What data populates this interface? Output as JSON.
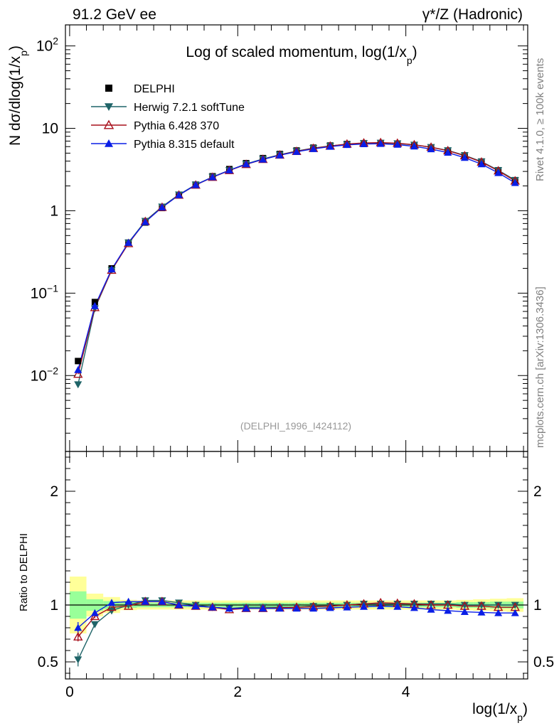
{
  "header": {
    "left": "91.2 GeV ee",
    "right": "γ*/Z (Hadronic)"
  },
  "side_labels": {
    "rivet": "Rivet 4.1.0, ≥ 100k events",
    "mcplots": "mcplots.cern.ch [arXiv:1306.3436]"
  },
  "colors": {
    "data": "#000000",
    "herwig": "#1f6468",
    "pythia6": "#a8101c",
    "pythia8": "#0a1ee6",
    "band_outer": "#ffff99",
    "band_inner": "#99ff99"
  },
  "chart_data": [
    {
      "type": "line",
      "title": "Log of scaled momentum, log(1/x_p)",
      "title_main": "Log of scaled momentum, log(1/x",
      "title_sub": "p",
      "title_close": ")",
      "ylabel": "N  dσ/dlog(1/x_p)",
      "ylabel_main": "N  dσ/dlog(1/x",
      "ylabel_sub": "p",
      "ylabel_close": ")",
      "yscale": "log",
      "ylim": [
        0.0012,
        180
      ],
      "xlim": [
        -0.05,
        5.45
      ],
      "yticks": [
        0.01,
        0.1,
        1,
        10,
        100
      ],
      "ytick_labels": [
        {
          "base": "10",
          "exp": "−2"
        },
        {
          "base": "10",
          "exp": "−1"
        },
        {
          "base": "1",
          "exp": ""
        },
        {
          "base": "10",
          "exp": ""
        },
        {
          "base": "10",
          "exp": "2"
        }
      ],
      "analysis_tag": "(DELPHI_1996_I424112)",
      "legend_position": "top-left",
      "x": [
        0.1,
        0.3,
        0.5,
        0.7,
        0.9,
        1.1,
        1.3,
        1.5,
        1.7,
        1.9,
        2.1,
        2.3,
        2.5,
        2.7,
        2.9,
        3.1,
        3.3,
        3.5,
        3.7,
        3.9,
        4.1,
        4.3,
        4.5,
        4.7,
        4.9,
        5.1,
        5.3
      ],
      "series": [
        {
          "name": "DELPHI",
          "marker": "square",
          "values": [
            0.015,
            0.078,
            0.2,
            0.41,
            0.72,
            1.08,
            1.55,
            2.07,
            2.62,
            3.2,
            3.78,
            4.35,
            4.88,
            5.38,
            5.82,
            6.18,
            6.45,
            6.6,
            6.62,
            6.5,
            6.25,
            5.85,
            5.35,
            4.7,
            3.95,
            3.1,
            2.35
          ]
        },
        {
          "name": "Herwig 7.2.1 softTune",
          "marker": "triangle-down",
          "values": [
            0.0078,
            0.065,
            0.19,
            0.41,
            0.75,
            1.12,
            1.57,
            2.07,
            2.57,
            3.1,
            3.7,
            4.25,
            4.78,
            5.3,
            5.75,
            6.12,
            6.4,
            6.6,
            6.65,
            6.55,
            6.3,
            5.9,
            5.4,
            4.7,
            3.95,
            3.1,
            2.35
          ]
        },
        {
          "name": "Pythia 6.428 370",
          "marker": "triangle-up-open",
          "values": [
            0.0104,
            0.067,
            0.19,
            0.4,
            0.74,
            1.1,
            1.55,
            2.05,
            2.55,
            3.08,
            3.65,
            4.2,
            4.75,
            5.25,
            5.72,
            6.1,
            6.45,
            6.65,
            6.72,
            6.6,
            6.32,
            5.9,
            5.35,
            4.65,
            3.9,
            3.05,
            2.3
          ]
        },
        {
          "name": "Pythia 8.315 default",
          "marker": "triangle-up",
          "values": [
            0.0117,
            0.07,
            0.195,
            0.41,
            0.73,
            1.1,
            1.55,
            2.06,
            2.56,
            3.1,
            3.68,
            4.2,
            4.72,
            5.2,
            5.63,
            6.0,
            6.3,
            6.45,
            6.5,
            6.35,
            6.05,
            5.6,
            5.08,
            4.4,
            3.68,
            2.88,
            2.18
          ]
        }
      ]
    },
    {
      "type": "line",
      "xlabel": "log(1/x_p)",
      "xlabel_main": "log(1/x",
      "xlabel_sub": "p",
      "xlabel_close": ")",
      "ylabel": "Ratio to DELPHI",
      "ylim": [
        0.35,
        2.35
      ],
      "xlim": [
        -0.05,
        5.45
      ],
      "xticks": [
        0,
        2,
        4
      ],
      "xtick_labels": [
        "0",
        "2",
        "4"
      ],
      "yticks": [
        0.5,
        1,
        2
      ],
      "ytick_labels": [
        "0.5",
        "1",
        "2"
      ],
      "reference": 1,
      "band_edges": [
        0,
        0.2,
        0.4,
        0.6,
        0.8,
        1.0,
        1.2,
        1.4,
        1.6,
        1.8,
        2.0,
        2.2,
        2.4,
        2.6,
        2.8,
        3.0,
        3.2,
        3.4,
        3.6,
        3.8,
        4.0,
        4.2,
        4.4,
        4.6,
        4.8,
        5.0,
        5.2,
        5.4
      ],
      "band_outer_halfwidth": [
        0.25,
        0.1,
        0.07,
        0.045,
        0.04,
        0.04,
        0.04,
        0.04,
        0.04,
        0.04,
        0.04,
        0.04,
        0.04,
        0.04,
        0.04,
        0.04,
        0.04,
        0.04,
        0.04,
        0.04,
        0.04,
        0.04,
        0.04,
        0.045,
        0.05,
        0.055,
        0.06
      ],
      "band_inner_halfwidth": [
        0.12,
        0.05,
        0.035,
        0.025,
        0.02,
        0.02,
        0.02,
        0.02,
        0.02,
        0.02,
        0.02,
        0.02,
        0.02,
        0.02,
        0.02,
        0.02,
        0.02,
        0.02,
        0.02,
        0.02,
        0.02,
        0.02,
        0.02,
        0.025,
        0.025,
        0.03,
        0.03
      ],
      "x": [
        0.1,
        0.3,
        0.5,
        0.7,
        0.9,
        1.1,
        1.3,
        1.5,
        1.7,
        1.9,
        2.1,
        2.3,
        2.5,
        2.7,
        2.9,
        3.1,
        3.3,
        3.5,
        3.7,
        3.9,
        4.1,
        4.3,
        4.5,
        4.7,
        4.9,
        5.1,
        5.3
      ],
      "series": [
        {
          "name": "Herwig 7.2.1 softTune",
          "marker": "triangle-down",
          "values": [
            0.52,
            0.83,
            0.95,
            1.0,
            1.04,
            1.04,
            1.02,
            1.0,
            0.98,
            0.97,
            0.98,
            0.98,
            0.98,
            0.98,
            0.99,
            0.99,
            1.0,
            1.01,
            1.01,
            1.01,
            1.01,
            1.01,
            1.01,
            1.0,
            1.0,
            1.0,
            1.0
          ],
          "errors": [
            0.06,
            0.02,
            0.01,
            0,
            0,
            0,
            0,
            0,
            0,
            0,
            0,
            0,
            0,
            0,
            0,
            0,
            0,
            0,
            0,
            0,
            0,
            0,
            0,
            0,
            0,
            0,
            0
          ]
        },
        {
          "name": "Pythia 6.428 370",
          "marker": "triangle-up-open",
          "values": [
            0.72,
            0.9,
            0.98,
            0.99,
            1.03,
            1.03,
            1.0,
            0.99,
            0.98,
            0.96,
            0.97,
            0.97,
            0.975,
            0.98,
            0.985,
            0.99,
            1.0,
            1.01,
            1.02,
            1.015,
            1.01,
            1.0,
            1.0,
            0.99,
            0.99,
            0.98,
            0.98
          ],
          "errors": [
            0.04,
            0.015,
            0.01,
            0,
            0,
            0,
            0,
            0,
            0,
            0,
            0,
            0,
            0,
            0,
            0,
            0,
            0,
            0,
            0,
            0,
            0,
            0,
            0,
            0,
            0,
            0,
            0
          ]
        },
        {
          "name": "Pythia 8.315 default",
          "marker": "triangle-up",
          "values": [
            0.8,
            0.93,
            1.02,
            1.03,
            1.03,
            1.03,
            1.0,
            0.99,
            0.98,
            0.97,
            0.97,
            0.97,
            0.97,
            0.97,
            0.97,
            0.975,
            0.98,
            0.985,
            0.99,
            0.985,
            0.975,
            0.96,
            0.95,
            0.94,
            0.935,
            0.93,
            0.93
          ],
          "errors": [
            0.05,
            0.015,
            0.01,
            0,
            0,
            0,
            0,
            0,
            0,
            0,
            0,
            0,
            0,
            0,
            0,
            0,
            0,
            0,
            0,
            0,
            0,
            0,
            0,
            0,
            0,
            0,
            0
          ]
        }
      ]
    }
  ]
}
